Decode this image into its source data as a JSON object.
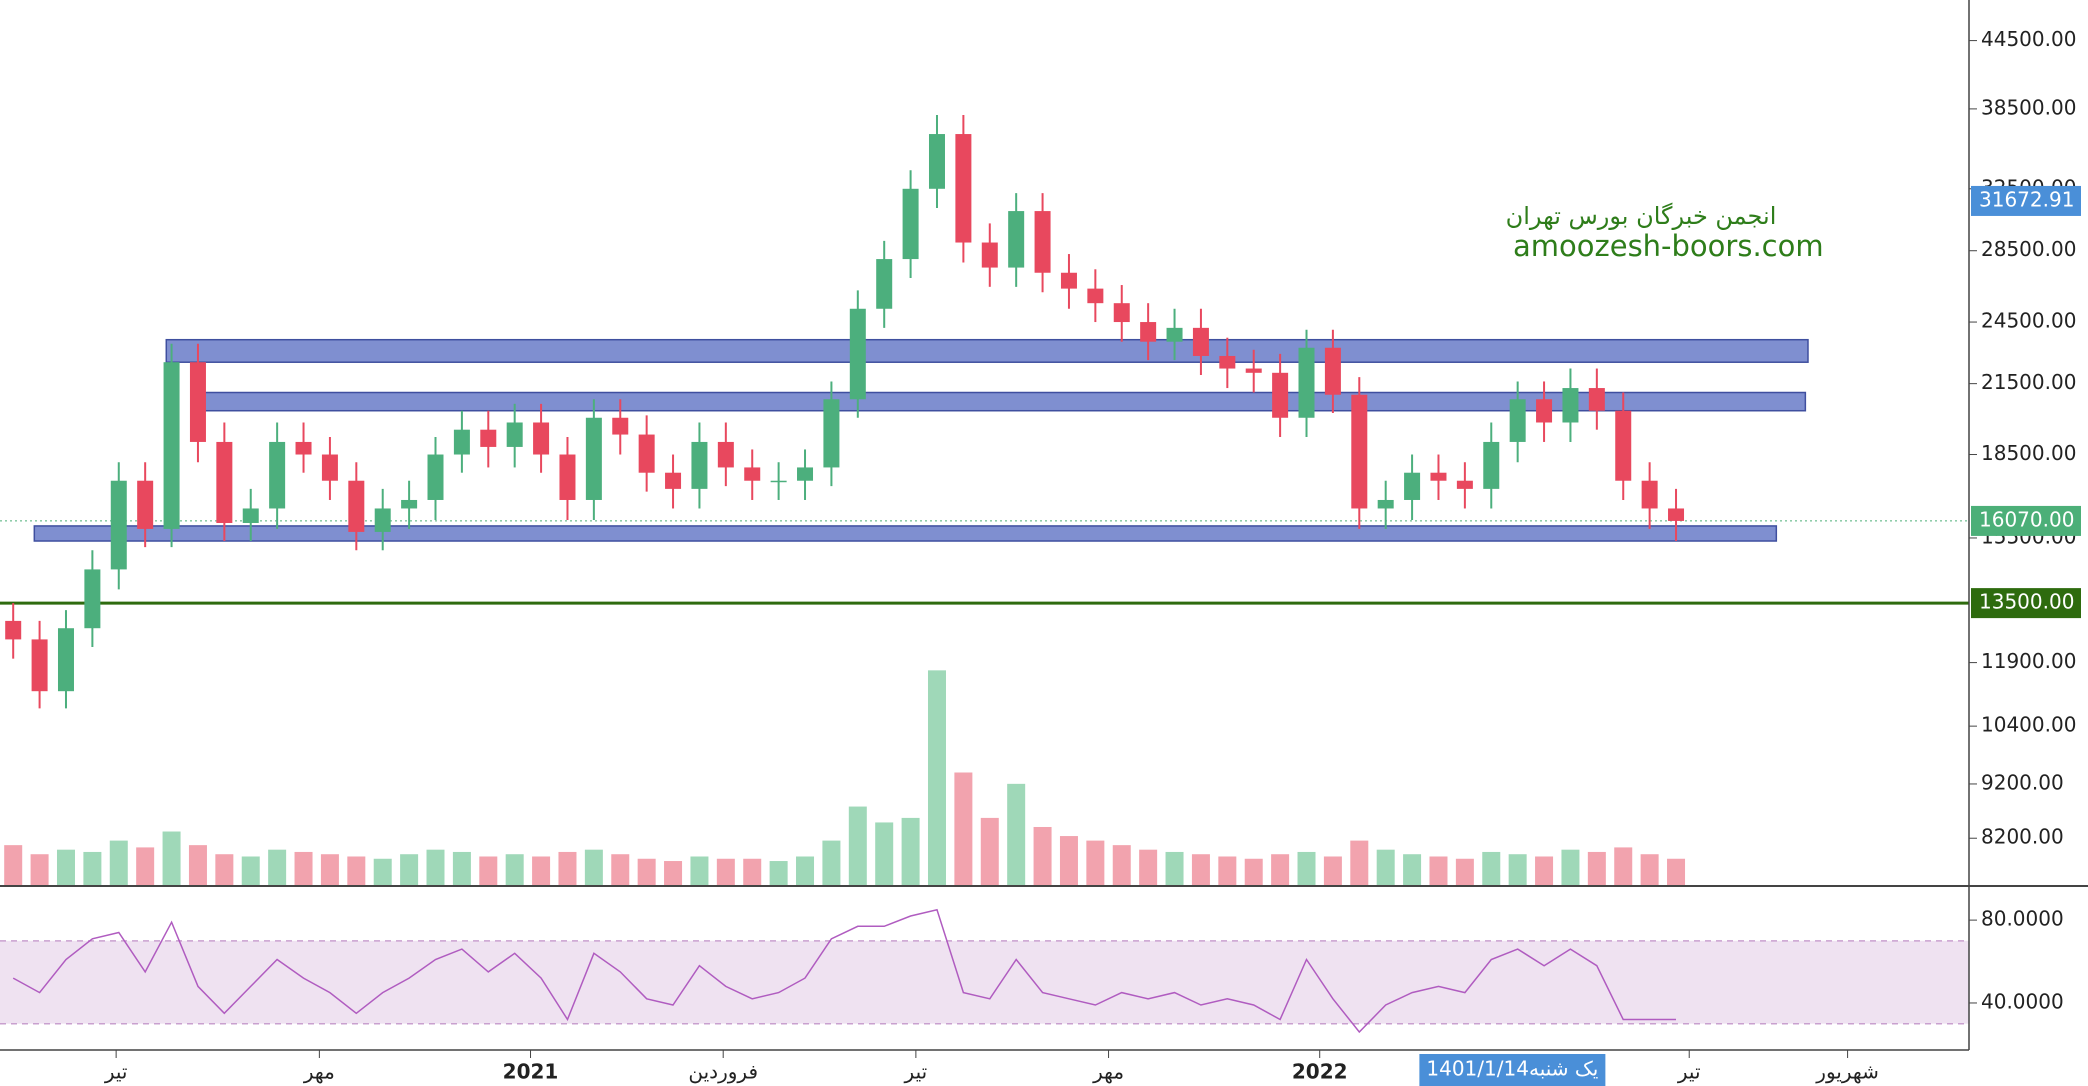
{
  "chart_data": {
    "type": "candlestick",
    "log_scale": true,
    "open": [
      13000,
      12500,
      11200,
      12800,
      14500,
      17500,
      15800,
      22500,
      19000,
      16000,
      16500,
      19000,
      18500,
      17500,
      15700,
      16500,
      16800,
      18500,
      19500,
      18800,
      19800,
      18500,
      16800,
      20000,
      19300,
      17800,
      17200,
      19000,
      18000,
      17500,
      17500,
      18000,
      20800,
      25200,
      28000,
      32500,
      36500,
      29000,
      27500,
      31000,
      27200,
      26300,
      25500,
      24500,
      23500,
      24200,
      22800,
      22200,
      22000,
      20000,
      23200,
      21000,
      16500,
      16800,
      17800,
      17500,
      17200,
      19000,
      20800,
      19800,
      21300,
      20300,
      17500,
      16500
    ],
    "high": [
      13500,
      13000,
      13300,
      15100,
      18200,
      18200,
      23400,
      23400,
      19800,
      17200,
      19800,
      19800,
      19200,
      18200,
      17200,
      17500,
      19200,
      20300,
      20300,
      20600,
      20600,
      19200,
      20800,
      20800,
      20100,
      18500,
      19800,
      19800,
      18700,
      18200,
      18700,
      21600,
      26200,
      29100,
      33800,
      38000,
      38000,
      30200,
      32200,
      32200,
      28300,
      27400,
      26500,
      25500,
      25200,
      25200,
      23700,
      23100,
      22900,
      24100,
      24100,
      21800,
      17500,
      18500,
      18500,
      18200,
      19800,
      21600,
      21600,
      22200,
      22200,
      21100,
      18200,
      17200
    ],
    "low": [
      12000,
      10800,
      10800,
      12300,
      13900,
      15200,
      15200,
      18200,
      15400,
      15400,
      15800,
      17800,
      16800,
      15100,
      15100,
      15800,
      16100,
      17800,
      18000,
      18000,
      17800,
      16100,
      16100,
      18500,
      17100,
      16500,
      16500,
      17300,
      16800,
      16800,
      16800,
      17300,
      20000,
      24200,
      26900,
      31200,
      27800,
      26400,
      26400,
      26100,
      25200,
      24500,
      23500,
      22600,
      22600,
      21900,
      21300,
      21100,
      19200,
      19200,
      20200,
      15800,
      15800,
      16100,
      16800,
      16500,
      16500,
      18200,
      19000,
      19000,
      19500,
      16800,
      15800,
      15400
    ],
    "close": [
      12500,
      11200,
      12800,
      14500,
      17500,
      15800,
      22500,
      19000,
      16000,
      16500,
      19000,
      18500,
      17500,
      15700,
      16500,
      16800,
      18500,
      19500,
      18800,
      19800,
      18500,
      16800,
      20000,
      19300,
      17800,
      17200,
      19000,
      18000,
      17500,
      17500,
      18000,
      20800,
      25200,
      28000,
      32500,
      36500,
      29000,
      27500,
      31000,
      27200,
      26300,
      25500,
      24500,
      23500,
      24200,
      22800,
      22200,
      22000,
      20000,
      23200,
      21000,
      16500,
      16800,
      17800,
      17500,
      17200,
      19000,
      20800,
      19800,
      21300,
      20300,
      17500,
      16500,
      16070
    ],
    "volume": [
      18,
      14,
      16,
      15,
      20,
      17,
      24,
      18,
      14,
      13,
      16,
      15,
      14,
      13,
      12,
      14,
      16,
      15,
      13,
      14,
      13,
      15,
      16,
      14,
      12,
      11,
      13,
      12,
      12,
      11,
      13,
      20,
      35,
      28,
      30,
      95,
      50,
      30,
      45,
      26,
      22,
      20,
      18,
      16,
      15,
      14,
      13,
      12,
      14,
      15,
      13,
      20,
      16,
      14,
      13,
      12,
      15,
      14,
      13,
      16,
      15,
      17,
      14,
      12
    ],
    "up_color": "#4caf7d",
    "down_color": "#e8485e",
    "volume_up_color": "#9fd8b8",
    "volume_down_color": "#f2a3ae",
    "vlim": [
      0,
      100
    ],
    "xlim": [
      0,
      74.6
    ],
    "xticks": [
      {
        "value": 4.4,
        "label": "تیر"
      },
      {
        "value": 12.1,
        "label": "مهر"
      },
      {
        "value": 20.1,
        "label": "2021"
      },
      {
        "value": 27.4,
        "label": "فروردین"
      },
      {
        "value": 34.7,
        "label": "تیر"
      },
      {
        "value": 42,
        "label": "مهر"
      },
      {
        "value": 50,
        "label": "2022"
      },
      {
        "value": 64,
        "label": "تیر"
      },
      {
        "value": 70,
        "label": "شهریور"
      }
    ],
    "ylim": [
      7410,
      48500
    ],
    "yticks": [
      {
        "value": 44500,
        "label": "44500.00"
      },
      {
        "value": 38500,
        "label": "38500.00"
      },
      {
        "value": 32500,
        "label": "32500.00"
      },
      {
        "value": 28500,
        "label": "28500.00"
      },
      {
        "value": 24500,
        "label": "24500.00"
      },
      {
        "value": 21500,
        "label": "21500.00"
      },
      {
        "value": 18500,
        "label": "18500.00"
      },
      {
        "value": 15500,
        "label": "15500.00"
      },
      {
        "value": 11900,
        "label": "11900.00"
      },
      {
        "value": 10400,
        "label": "10400.00"
      },
      {
        "value": 9200,
        "label": "9200.00"
      },
      {
        "value": 8200,
        "label": "8200.00"
      }
    ],
    "zone_color": "#7f8fd0",
    "zones": [
      {
        "from": 22500,
        "to": 23600,
        "start": 6.3,
        "end": 68.5
      },
      {
        "from": 20300,
        "to": 21100,
        "start": 7.5,
        "end": 68.4
      },
      {
        "from": 15400,
        "to": 15900,
        "start": 1.3,
        "end": 67.3
      }
    ],
    "price_labels": [
      {
        "value": 31672.91,
        "label": "31672.91",
        "color": "#4a8fd8"
      },
      {
        "value": 16070,
        "label": "16070.00",
        "color": "#4caf78",
        "line": "dotted"
      },
      {
        "value": 13500,
        "label": "13500.00",
        "color": "#2e6b0e",
        "line": "solid"
      }
    ],
    "watermark": {
      "title": "انجمن خبرگان بورس تهران",
      "url": "amoozesh-boors.com",
      "color": "#2e7d1a"
    },
    "crosshair": {
      "x": 57.3,
      "date": "1401/1/14",
      "day": "یک شنبه",
      "color": "#4a8fd8"
    },
    "rsi": {
      "values": [
        52,
        45,
        61,
        71,
        74,
        55,
        79,
        48,
        35,
        48,
        61,
        52,
        45,
        35,
        45,
        52,
        61,
        66,
        55,
        64,
        52,
        32,
        64,
        55,
        42,
        39,
        58,
        48,
        42,
        45,
        52,
        71,
        77,
        77,
        82,
        85,
        45,
        42,
        61,
        45,
        42,
        39,
        45,
        42,
        45,
        39,
        42,
        39,
        32,
        61,
        42,
        26,
        39,
        45,
        48,
        45,
        61,
        66,
        58,
        66,
        58,
        32,
        32,
        32
      ],
      "color": "#b05cc0",
      "ylim": [
        17.3,
        95.5
      ],
      "yticks": [
        {
          "value": 80,
          "label": "80.0000"
        },
        {
          "value": 40,
          "label": "40.0000"
        }
      ],
      "band": [
        30,
        70
      ],
      "band_color": "#efe2f1"
    }
  }
}
